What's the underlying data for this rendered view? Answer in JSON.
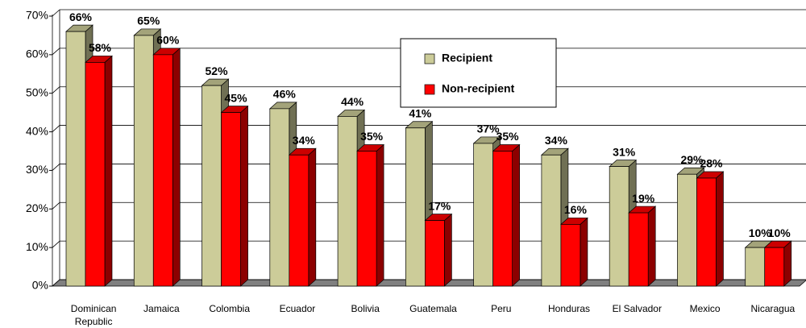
{
  "chart_data": {
    "type": "bar3d",
    "categories": [
      "Dominican Republic",
      "Jamaica",
      "Colombia",
      "Ecuador",
      "Bolivia",
      "Guatemala",
      "Peru",
      "Honduras",
      "El Salvador",
      "Mexico",
      "Nicaragua"
    ],
    "series": [
      {
        "name": "Recipient",
        "color": "#cccc99",
        "values": [
          66,
          65,
          52,
          46,
          44,
          41,
          37,
          34,
          31,
          29,
          10
        ],
        "value_labels": [
          "66%",
          "65%",
          "52%",
          "46%",
          "44%",
          "41%",
          "37%",
          "34%",
          "31%",
          "29%",
          "10%"
        ]
      },
      {
        "name": "Non-recipient",
        "color": "#ff0000",
        "values": [
          58,
          60,
          45,
          34,
          35,
          17,
          35,
          16,
          19,
          28,
          10
        ],
        "value_labels": [
          "58%",
          "60%",
          "45%",
          "34%",
          "35%",
          "17%",
          "35%",
          "16%",
          "19%",
          "28%",
          "10%"
        ]
      }
    ],
    "ylim": [
      0,
      70
    ],
    "yticks": [
      {
        "value": 0,
        "label": "0%"
      },
      {
        "value": 10,
        "label": "10%"
      },
      {
        "value": 20,
        "label": "20%"
      },
      {
        "value": 30,
        "label": "30%"
      },
      {
        "value": 40,
        "label": "40%"
      },
      {
        "value": 50,
        "label": "50%"
      },
      {
        "value": 60,
        "label": "60%"
      },
      {
        "value": 70,
        "label": "70%"
      }
    ],
    "grid": true
  }
}
